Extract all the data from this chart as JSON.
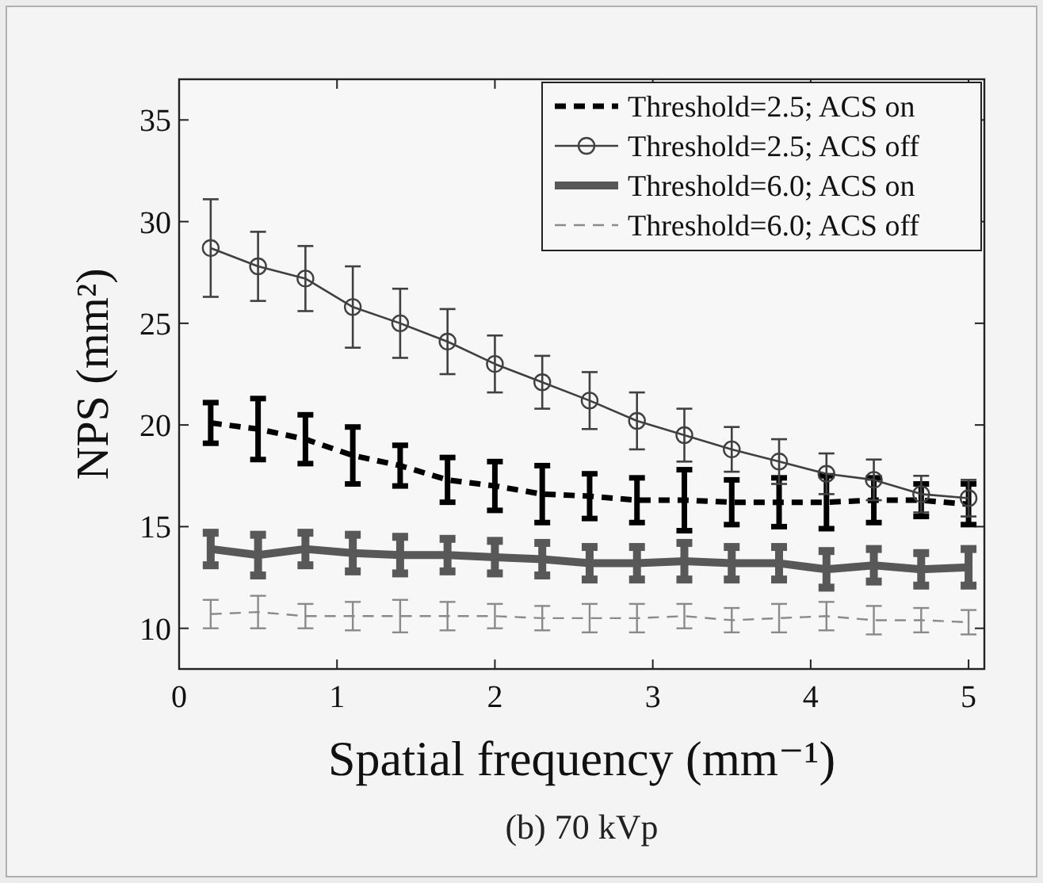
{
  "chart_data": {
    "type": "line",
    "title": "(b) 70 kVp",
    "xlabel": "Spatial frequency (mm⁻¹)",
    "ylabel": "NPS (mm²)",
    "x": [
      0.2,
      0.5,
      0.8,
      1.1,
      1.4,
      1.7,
      2.0,
      2.3,
      2.6,
      2.9,
      3.2,
      3.5,
      3.8,
      4.1,
      4.4,
      4.7,
      5.0
    ],
    "xlim": [
      0,
      5.1
    ],
    "xticks": [
      0,
      1,
      2,
      3,
      4,
      5
    ],
    "ylim": [
      8,
      37
    ],
    "yticks": [
      10,
      15,
      20,
      25,
      30,
      35
    ],
    "grid": false,
    "legend": "top right",
    "series": [
      {
        "name": "Threshold=2.5; ACS on",
        "color": "#000000",
        "line_style": "dashed",
        "marker": "none",
        "values": [
          20.1,
          19.8,
          19.3,
          18.5,
          18.0,
          17.3,
          17.0,
          16.6,
          16.5,
          16.3,
          16.3,
          16.2,
          16.2,
          16.2,
          16.3,
          16.3,
          16.1
        ],
        "errors": [
          1.0,
          1.5,
          1.2,
          1.4,
          1.0,
          1.1,
          1.2,
          1.4,
          1.1,
          1.1,
          1.5,
          1.1,
          1.2,
          1.3,
          1.1,
          0.8,
          1.0
        ]
      },
      {
        "name": "Threshold=2.5; ACS off",
        "color": "#404040",
        "line_style": "solid",
        "marker": "circle",
        "values": [
          28.7,
          27.8,
          27.2,
          25.8,
          25.0,
          24.1,
          23.0,
          22.1,
          21.2,
          20.2,
          19.5,
          18.8,
          18.2,
          17.6,
          17.3,
          16.6,
          16.4
        ],
        "errors": [
          2.4,
          1.7,
          1.6,
          2.0,
          1.7,
          1.6,
          1.4,
          1.3,
          1.4,
          1.4,
          1.3,
          1.1,
          1.1,
          1.0,
          1.0,
          0.9,
          0.9
        ]
      },
      {
        "name": "Threshold=6.0; ACS on",
        "color": "#585858",
        "line_style": "solid",
        "marker": "none",
        "values": [
          13.9,
          13.6,
          13.9,
          13.7,
          13.6,
          13.6,
          13.5,
          13.4,
          13.2,
          13.2,
          13.3,
          13.2,
          13.2,
          12.9,
          13.1,
          12.9,
          13.0
        ],
        "errors": [
          0.8,
          1.0,
          0.8,
          0.9,
          0.9,
          0.8,
          0.8,
          0.8,
          0.8,
          0.8,
          0.9,
          0.8,
          0.8,
          0.9,
          0.8,
          0.8,
          0.9
        ]
      },
      {
        "name": "Threshold=6.0; ACS off",
        "color": "#8a8a8a",
        "line_style": "dashed",
        "marker": "none",
        "values": [
          10.7,
          10.8,
          10.6,
          10.6,
          10.6,
          10.6,
          10.6,
          10.5,
          10.5,
          10.5,
          10.6,
          10.4,
          10.5,
          10.6,
          10.4,
          10.4,
          10.3
        ],
        "errors": [
          0.7,
          0.8,
          0.6,
          0.7,
          0.8,
          0.7,
          0.6,
          0.6,
          0.7,
          0.7,
          0.6,
          0.6,
          0.7,
          0.7,
          0.7,
          0.6,
          0.6
        ]
      }
    ]
  }
}
